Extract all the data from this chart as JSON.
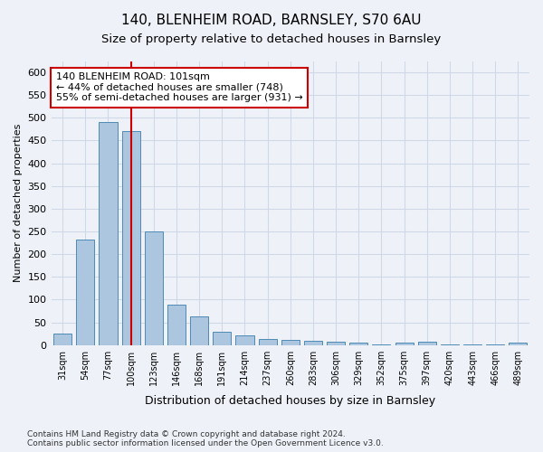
{
  "title_line1": "140, BLENHEIM ROAD, BARNSLEY, S70 6AU",
  "title_line2": "Size of property relative to detached houses in Barnsley",
  "xlabel": "Distribution of detached houses by size in Barnsley",
  "ylabel": "Number of detached properties",
  "footer": "Contains HM Land Registry data © Crown copyright and database right 2024.\nContains public sector information licensed under the Open Government Licence v3.0.",
  "annotation_line1": "140 BLENHEIM ROAD: 101sqm",
  "annotation_line2": "← 44% of detached houses are smaller (748)",
  "annotation_line3": "55% of semi-detached houses are larger (931) →",
  "bar_categories": [
    "31sqm",
    "54sqm",
    "77sqm",
    "100sqm",
    "123sqm",
    "146sqm",
    "168sqm",
    "191sqm",
    "214sqm",
    "237sqm",
    "260sqm",
    "283sqm",
    "306sqm",
    "329sqm",
    "352sqm",
    "375sqm",
    "397sqm",
    "420sqm",
    "443sqm",
    "466sqm",
    "489sqm"
  ],
  "bar_values": [
    25,
    232,
    490,
    470,
    249,
    88,
    63,
    30,
    22,
    13,
    12,
    10,
    8,
    5,
    2,
    5,
    7,
    2,
    1,
    2,
    5
  ],
  "bar_color": "#adc6e0",
  "bar_edge_color": "#4d8ab5",
  "bar_width": 0.8,
  "vline_x_index": 3,
  "vline_color": "#cc0000",
  "annotation_box_color": "#cc0000",
  "annotation_bg": "#ffffff",
  "grid_color": "#d0d8e8",
  "ylim": [
    0,
    625
  ],
  "yticks": [
    0,
    50,
    100,
    150,
    200,
    250,
    300,
    350,
    400,
    450,
    500,
    550,
    600
  ],
  "bg_color": "#eef2f8"
}
